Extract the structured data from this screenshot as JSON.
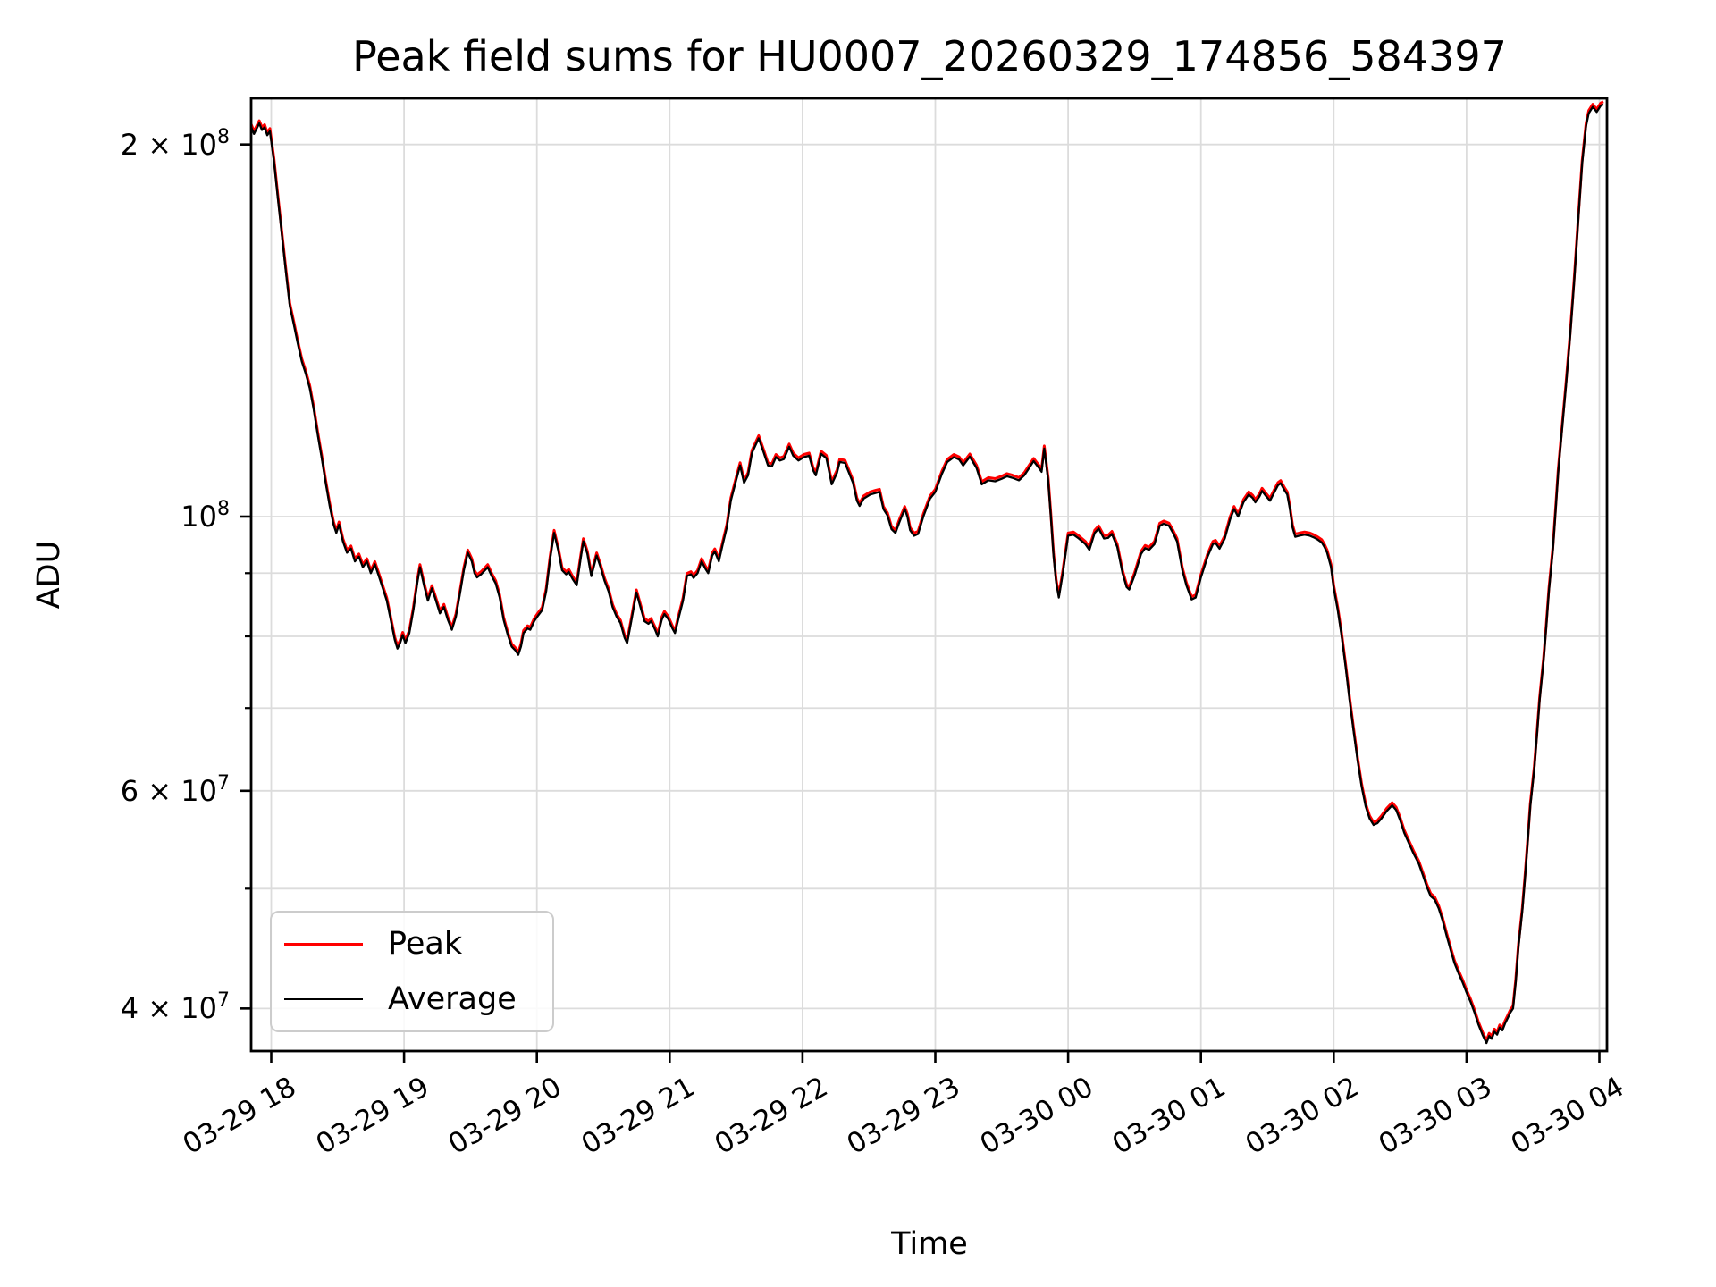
{
  "chart_data": {
    "type": "line",
    "title": "Peak field sums for HU0007_20260329_174856_584397",
    "xlabel": "Time",
    "ylabel": "ADU",
    "y_scale": "log",
    "grid": "both",
    "legend_position": "lower left",
    "x_unit": "hours since 2026-03-29 00:00 (axis labels show MM-DD HH)",
    "y_unit": "ADU; series values stored in millions (1e6 ADU)",
    "x_range_hours": [
      17.84,
      28.05
    ],
    "y_range_millions": [
      36.9,
      218
    ],
    "x_tick_hours": [
      18,
      19,
      20,
      21,
      22,
      23,
      24,
      25,
      26,
      27,
      28
    ],
    "x_tick_labels": [
      "03-29 18",
      "03-29 19",
      "03-29 20",
      "03-29 21",
      "03-29 22",
      "03-29 23",
      "03-30 00",
      "03-30 01",
      "03-30 02",
      "03-30 03",
      "03-30 04"
    ],
    "y_tick_labels": [
      "2 × 10⁸",
      "10⁸",
      "6 × 10⁷",
      "4 × 10⁷"
    ],
    "y_ticks_labeled": [
      {
        "mantissa": "2 × 10",
        "exp": "8",
        "value_millions": 200
      },
      {
        "mantissa": "10",
        "exp": "8",
        "value_millions": 100
      },
      {
        "mantissa": "6 × 10",
        "exp": "7",
        "value_millions": 60
      },
      {
        "mantissa": "4 × 10",
        "exp": "7",
        "value_millions": 40
      }
    ],
    "y_ticks_minor_millions": [
      90,
      80,
      70,
      50
    ],
    "x_hours": [
      17.83,
      17.85,
      17.87,
      17.89,
      17.91,
      17.93,
      17.95,
      17.97,
      17.99,
      18.02,
      18.05,
      18.08,
      18.11,
      18.14,
      18.17,
      18.2,
      18.23,
      18.26,
      18.29,
      18.32,
      18.35,
      18.38,
      18.41,
      18.44,
      18.47,
      18.49,
      18.51,
      18.54,
      18.57,
      18.6,
      18.63,
      18.66,
      18.69,
      18.72,
      18.75,
      18.78,
      18.81,
      18.84,
      18.87,
      18.9,
      18.93,
      18.95,
      18.97,
      18.99,
      19.01,
      19.04,
      19.07,
      19.1,
      19.12,
      19.15,
      19.18,
      19.21,
      19.24,
      19.27,
      19.3,
      19.33,
      19.36,
      19.39,
      19.42,
      19.45,
      19.48,
      19.51,
      19.53,
      19.55,
      19.58,
      19.61,
      19.63,
      19.66,
      19.69,
      19.72,
      19.75,
      19.78,
      19.81,
      19.84,
      19.86,
      19.88,
      19.9,
      19.93,
      19.95,
      19.98,
      20.01,
      20.04,
      20.07,
      20.1,
      20.13,
      20.16,
      20.19,
      20.22,
      20.24,
      20.27,
      20.3,
      20.33,
      20.35,
      20.38,
      20.41,
      20.45,
      20.48,
      20.51,
      20.54,
      20.57,
      20.6,
      20.63,
      20.66,
      20.68,
      20.71,
      20.75,
      20.78,
      20.81,
      20.84,
      20.86,
      20.89,
      20.91,
      20.94,
      20.96,
      20.99,
      21.02,
      21.04,
      21.07,
      21.1,
      21.13,
      21.16,
      21.18,
      21.21,
      21.24,
      21.27,
      21.29,
      21.32,
      21.34,
      21.37,
      21.4,
      21.43,
      21.46,
      21.5,
      21.53,
      21.56,
      21.59,
      21.62,
      21.67,
      21.71,
      21.74,
      21.77,
      21.8,
      21.83,
      21.86,
      21.9,
      21.93,
      21.97,
      22.01,
      22.05,
      22.08,
      22.1,
      22.14,
      22.18,
      22.22,
      22.26,
      22.28,
      22.32,
      22.35,
      22.38,
      22.41,
      22.43,
      22.46,
      22.51,
      22.55,
      22.58,
      22.61,
      22.64,
      22.67,
      22.7,
      22.73,
      22.77,
      22.79,
      22.81,
      22.84,
      22.87,
      22.91,
      22.96,
      23.0,
      23.05,
      23.09,
      23.14,
      23.18,
      23.21,
      23.26,
      23.31,
      23.35,
      23.4,
      23.45,
      23.5,
      23.54,
      23.58,
      23.63,
      23.67,
      23.7,
      23.74,
      23.78,
      23.8,
      23.82,
      23.85,
      23.87,
      23.89,
      23.91,
      23.93,
      23.96,
      24.0,
      24.04,
      24.08,
      24.13,
      24.16,
      24.2,
      24.23,
      24.27,
      24.3,
      24.33,
      24.37,
      24.41,
      24.44,
      24.46,
      24.5,
      24.55,
      24.58,
      24.61,
      24.65,
      24.69,
      24.72,
      24.76,
      24.79,
      24.82,
      24.86,
      24.89,
      24.93,
      24.96,
      25.0,
      25.05,
      25.09,
      25.11,
      25.14,
      25.18,
      25.22,
      25.25,
      25.28,
      25.32,
      25.36,
      25.39,
      25.41,
      25.44,
      25.46,
      25.49,
      25.52,
      25.55,
      25.58,
      25.6,
      25.63,
      25.65,
      25.67,
      25.69,
      25.71,
      25.74,
      25.78,
      25.82,
      25.85,
      25.88,
      25.91,
      25.93,
      25.95,
      25.98,
      26.0,
      26.03,
      26.06,
      26.09,
      26.12,
      26.15,
      26.18,
      26.21,
      26.24,
      26.27,
      26.3,
      26.33,
      26.36,
      26.4,
      26.44,
      26.47,
      26.5,
      26.53,
      26.57,
      26.6,
      26.64,
      26.67,
      26.7,
      26.73,
      26.76,
      26.79,
      26.82,
      26.85,
      26.88,
      26.91,
      26.94,
      26.97,
      27.0,
      27.03,
      27.06,
      27.09,
      27.12,
      27.15,
      27.17,
      27.19,
      27.21,
      27.23,
      27.25,
      27.27,
      27.29,
      27.31,
      27.33,
      27.35,
      27.37,
      27.39,
      27.42,
      27.44,
      27.46,
      27.48,
      27.51,
      27.53,
      27.55,
      27.58,
      27.6,
      27.62,
      27.65,
      27.67,
      27.69,
      27.72,
      27.75,
      27.78,
      27.81,
      27.84,
      27.87,
      27.9,
      27.92,
      27.95,
      27.98,
      28.01,
      28.03
    ],
    "series": [
      {
        "name": "Peak",
        "color": "#ff0000",
        "note": "visually overlaps Average; approximately 0.5% higher everywhere",
        "ratio_to_average": 1.005
      },
      {
        "name": "Average",
        "color": "#000000",
        "values_millions": [
          205,
          206.5,
          204,
          206,
          208,
          205.5,
          206.5,
          203.5,
          205,
          194,
          181,
          169,
          158,
          148,
          143,
          138,
          133.5,
          130.5,
          127,
          122,
          116.5,
          111.5,
          106.5,
          102,
          98.5,
          97,
          98.5,
          95.5,
          93.5,
          94.2,
          92,
          92.8,
          91,
          92,
          90,
          91.5,
          89.5,
          87.5,
          85.5,
          82.5,
          79.5,
          78.2,
          79,
          80.2,
          79,
          80.5,
          84,
          88.5,
          91,
          88,
          85.5,
          87.5,
          85.5,
          83.5,
          84.5,
          82.5,
          81,
          83,
          86.5,
          90.5,
          93.5,
          92,
          90,
          89.3,
          89.8,
          90.5,
          91,
          89.5,
          88.3,
          86,
          82.5,
          80.3,
          78.5,
          77.9,
          77.3,
          78.5,
          80.5,
          81.2,
          81,
          82.3,
          83.2,
          84,
          87,
          92.5,
          97,
          94,
          90.5,
          89.8,
          90.2,
          89,
          88,
          92.5,
          95.5,
          93.3,
          89.5,
          93,
          91,
          88.7,
          87,
          84.5,
          83,
          82,
          79.8,
          79,
          82.2,
          86.8,
          84.5,
          82.3,
          81.9,
          82.3,
          81,
          80,
          82.5,
          83.4,
          82.6,
          81.2,
          80.5,
          83,
          85.5,
          89.5,
          89.8,
          89.2,
          90,
          92,
          90.7,
          90,
          93,
          93.7,
          92,
          95,
          98,
          103,
          107,
          110,
          106.5,
          108,
          112.6,
          115.7,
          112.5,
          110,
          109.8,
          111.7,
          111,
          111.3,
          113.9,
          112,
          111,
          111.7,
          112,
          109,
          108,
          112.4,
          111.5,
          106.2,
          108.5,
          110.7,
          110.5,
          108.5,
          106.5,
          103,
          102,
          103.4,
          104.2,
          104.5,
          104.7,
          101.4,
          100.2,
          97.7,
          97,
          99,
          101.4,
          100,
          97.5,
          96.5,
          96.8,
          100,
          103.4,
          104.7,
          108.3,
          110.7,
          111.7,
          111.2,
          110,
          111.8,
          109.5,
          106.2,
          107,
          106.8,
          107.3,
          107.8,
          107.5,
          107,
          108,
          109.2,
          110.9,
          109.5,
          108.7,
          113.5,
          107,
          100,
          93,
          88.5,
          86,
          90,
          96.5,
          96.7,
          96,
          95,
          94,
          97,
          97.8,
          96,
          96.1,
          96.8,
          94.5,
          90,
          87.7,
          87.3,
          89.6,
          93.3,
          94.3,
          94,
          95,
          98.3,
          98.7,
          98.3,
          97,
          95.5,
          90.5,
          88,
          85.7,
          86,
          89.3,
          92.8,
          95,
          95.2,
          94.2,
          96,
          99.5,
          101.4,
          100,
          102.7,
          104.2,
          103.5,
          102.7,
          103.8,
          104.9,
          103.9,
          103,
          104.5,
          106,
          106.4,
          105,
          104.2,
          101.4,
          98,
          96.3,
          96.5,
          96.7,
          96.5,
          96.2,
          95.8,
          95.3,
          94.5,
          93.5,
          91,
          87.5,
          84,
          80,
          75.5,
          71,
          67,
          63.5,
          60.5,
          58.3,
          57,
          56.3,
          56.5,
          57,
          57.8,
          58.4,
          57.9,
          56.8,
          55.5,
          54.3,
          53.4,
          52.4,
          51.3,
          50.2,
          49.3,
          49,
          48.2,
          47.1,
          45.8,
          44.6,
          43.5,
          42.7,
          42,
          41.2,
          40.5,
          39.7,
          38.8,
          38.1,
          37.5,
          38,
          37.8,
          38.3,
          38.1,
          38.6,
          38.4,
          38.9,
          39.3,
          39.7,
          40,
          42,
          44.8,
          48,
          51,
          54.5,
          58.3,
          62.5,
          66.6,
          71,
          76.5,
          81.5,
          87,
          94,
          101,
          108.5,
          118,
          128,
          140,
          155,
          173,
          193,
          207,
          212,
          214.5,
          212.5,
          215,
          215.5
        ]
      }
    ]
  },
  "legend": {
    "items": [
      {
        "label": "Peak",
        "color": "#ff0000"
      },
      {
        "label": "Average",
        "color": "#000000"
      }
    ]
  },
  "style": {
    "grid_color": "#dcdcdc",
    "spine_color": "#000000",
    "peak_color": "#ff0000",
    "average_color": "#000000"
  }
}
